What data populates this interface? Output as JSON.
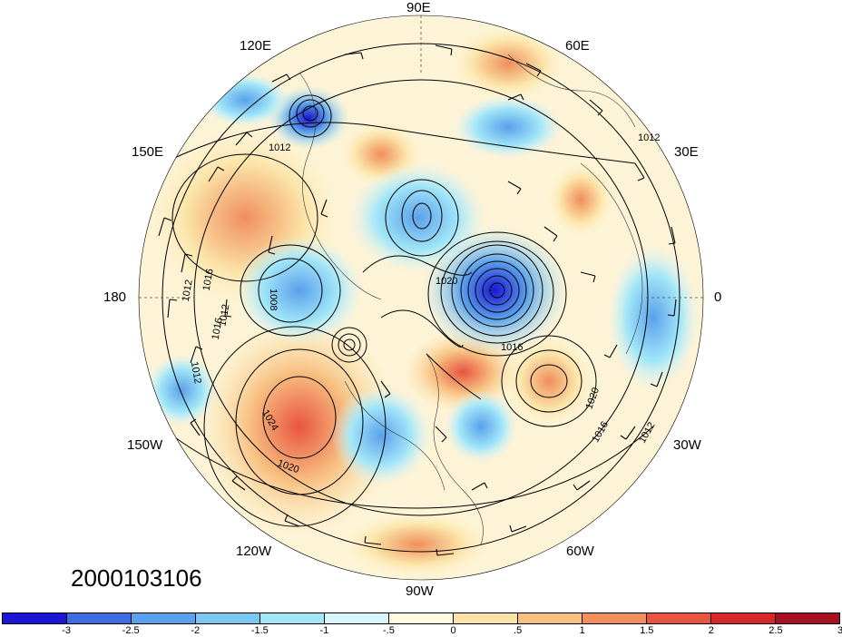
{
  "map": {
    "longitude_labels": {
      "lon_90E": "90E",
      "lon_60E": "60E",
      "lon_120E": "120E",
      "lon_150E": "150E",
      "lon_30E": "30E",
      "lon_180": "180",
      "lon_0": "0",
      "lon_150W": "150W",
      "lon_30W": "30W",
      "lon_120W": "120W",
      "lon_60W": "60W",
      "lon_90W": "90W"
    },
    "contour_labels": [
      "1012",
      "1012",
      "1016",
      "1012",
      "1016",
      "1008",
      "1020",
      "1016",
      "1012",
      "1024",
      "1020",
      "1020",
      "1016",
      "1012",
      "1012"
    ],
    "date": "2000103106",
    "anomaly_colors": {
      "strong_negative": "#1a1adb",
      "negative": "#4a90e2",
      "weak_negative": "#a8e4f2",
      "neutral": "#ffffff",
      "weak_positive": "#fbe6b0",
      "positive": "#f5a06a",
      "strong_positive": "#e03b2a"
    }
  },
  "colorbar": {
    "colors": [
      "#1a16d4",
      "#3d6ee0",
      "#5aa0ea",
      "#7cc6f2",
      "#a2e6f8",
      "#d6f6fb",
      "#fffbe0",
      "#fbe4a8",
      "#f7bf80",
      "#f08e5c",
      "#e85440",
      "#d62828",
      "#a8101f"
    ],
    "tick_labels": [
      "-3",
      "-2.5",
      "-2",
      "-1.5",
      "-1",
      "-.5",
      "0",
      ".5",
      "1",
      "1.5",
      "2",
      "2.5",
      "3"
    ]
  }
}
